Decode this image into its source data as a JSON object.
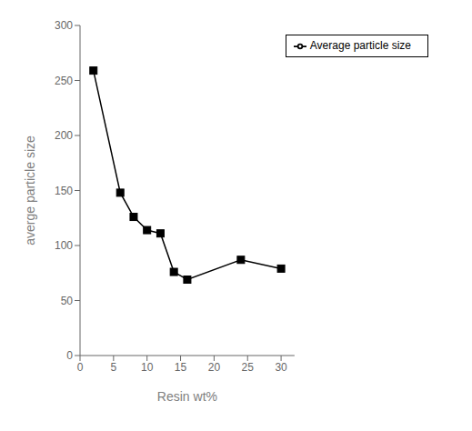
{
  "chart_data": {
    "type": "line",
    "x": [
      2,
      6,
      8,
      10,
      12,
      14,
      16,
      24,
      30
    ],
    "series": [
      {
        "name": "Average particle size",
        "color": "#000000",
        "marker": "square",
        "values": [
          259,
          148,
          126,
          114,
          111,
          76,
          69,
          87,
          79
        ]
      }
    ],
    "xlabel": "Resin wt%",
    "ylabel": "averge particle size",
    "xlim": [
      0,
      32
    ],
    "ylim": [
      0,
      300
    ],
    "xticks": [
      0,
      5,
      10,
      15,
      20,
      25,
      30
    ],
    "yticks": [
      0,
      50,
      100,
      150,
      200,
      250,
      300
    ],
    "legend": "upper right",
    "grid": false
  }
}
